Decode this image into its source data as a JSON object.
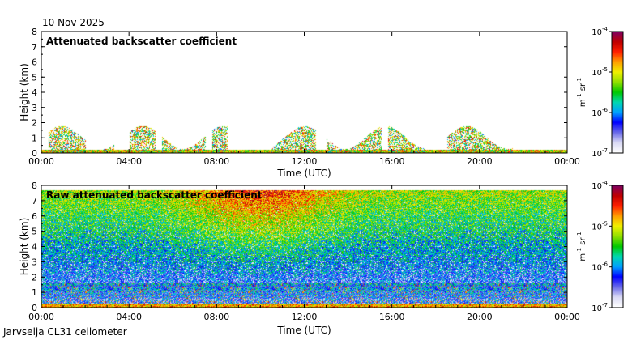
{
  "header": {
    "date": "10 Nov 2025"
  },
  "footer": {
    "station": "Jarvselja CL31 ceilometer"
  },
  "chart_data": [
    {
      "type": "heatmap",
      "title": "Attenuated backscatter coefficient",
      "xlabel": "Time (UTC)",
      "ylabel": "Height (km)",
      "xticks": [
        "00:00",
        "04:00",
        "08:00",
        "12:00",
        "16:00",
        "20:00",
        "00:00"
      ],
      "x_hours": [
        0,
        4,
        8,
        12,
        16,
        20,
        24
      ],
      "yticks": [
        0,
        1,
        2,
        3,
        4,
        5,
        6,
        7,
        8
      ],
      "ylim": [
        0,
        8
      ],
      "xlim_hours": [
        0,
        24
      ],
      "colorbar": {
        "label": "m-1 sr-1",
        "scale": "log",
        "min": 1e-07,
        "max": 0.0001,
        "ticks": [
          "10^-7",
          "10^-6",
          "10^-5",
          "10^-4"
        ]
      },
      "features": {
        "surface_layer_km": [
          0,
          0.25
        ],
        "low_cloud_segments_hours": [
          [
            0.3,
            2.0
          ],
          [
            2.8,
            3.3
          ],
          [
            4.0,
            5.2
          ],
          [
            5.5,
            7.5
          ],
          [
            7.8,
            8.5
          ],
          [
            10.5,
            12.5
          ],
          [
            13.0,
            15.5
          ],
          [
            15.8,
            17.5
          ],
          [
            18.5,
            19.8
          ],
          [
            19.8,
            21.5
          ]
        ],
        "low_cloud_top_km": [
          0.3,
          1.8
        ]
      }
    },
    {
      "type": "heatmap",
      "title": "Raw attenuated backscatter coefficient",
      "xlabel": "Time (UTC)",
      "ylabel": "Height (km)",
      "xticks": [
        "00:00",
        "04:00",
        "08:00",
        "12:00",
        "16:00",
        "20:00",
        "00:00"
      ],
      "x_hours": [
        0,
        4,
        8,
        12,
        16,
        20,
        24
      ],
      "yticks": [
        0,
        1,
        2,
        3,
        4,
        5,
        6,
        7,
        8
      ],
      "ylim": [
        0,
        8
      ],
      "xlim_hours": [
        0,
        24
      ],
      "data_top_km": 7.7,
      "colorbar": {
        "label": "m-1 sr-1",
        "scale": "log",
        "min": 1e-07,
        "max": 0.0001,
        "ticks": [
          "10^-7",
          "10^-6",
          "10^-5",
          "10^-4"
        ]
      },
      "features": {
        "noise_peak_hours": [
          8,
          12
        ],
        "noise_peak_level": "red/orange",
        "low_gap_km": [
          0.4,
          1.6
        ]
      }
    }
  ],
  "colors": {
    "colormap": [
      "#ffffff",
      "#d9d9f5",
      "#6a6ae8",
      "#0000ff",
      "#00a0ff",
      "#00d8b0",
      "#00c800",
      "#90e000",
      "#f0f000",
      "#ffa000",
      "#ff2000",
      "#c00000",
      "#800060"
    ]
  }
}
